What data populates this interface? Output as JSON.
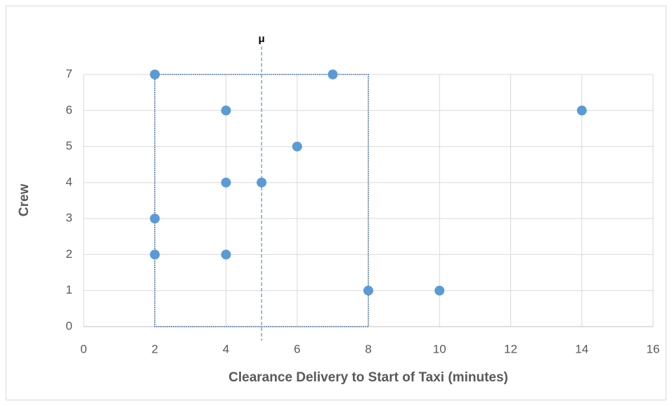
{
  "chart_data": {
    "type": "scatter",
    "x_label": "Clearance Delivery to Start of Taxi (minutes)",
    "y_label": "Crew",
    "series": [
      {
        "name": "Crew",
        "color": "#5b9bd5",
        "x": [
          2,
          7,
          4,
          14,
          6,
          4,
          5,
          2,
          2,
          4,
          8,
          10
        ],
        "values": [
          7,
          7,
          6,
          6,
          5,
          4,
          4,
          3,
          2,
          2,
          1,
          1
        ]
      }
    ],
    "xlim": [
      0,
      16
    ],
    "xticks": [
      0,
      2,
      4,
      6,
      8,
      10,
      12,
      14,
      16
    ],
    "ylim": [
      0,
      7
    ],
    "yticks": [
      0,
      1,
      2,
      3,
      4,
      5,
      6,
      7
    ],
    "grid": true,
    "mean_line": {
      "x": 5,
      "label": "μ",
      "color": "#5b9bd5"
    },
    "range_box": {
      "x": [
        2,
        8
      ],
      "y": [
        0,
        7
      ],
      "color": "#2f5f98"
    }
  }
}
